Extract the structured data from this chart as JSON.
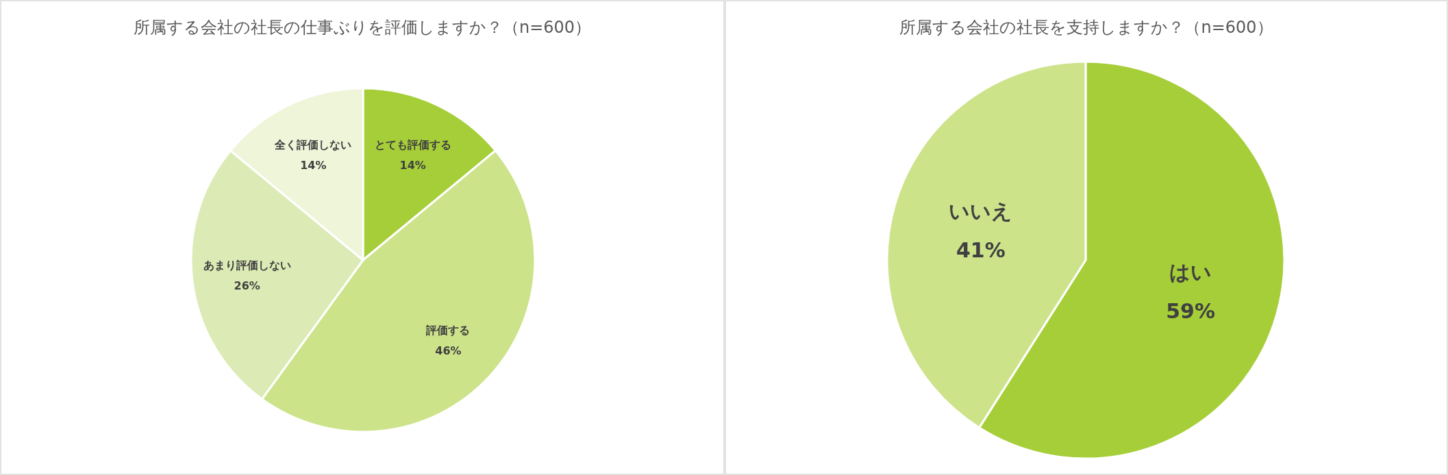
{
  "chart_data": [
    {
      "type": "pie",
      "title": "所属する会社の社長の仕事ぶりを評価しますか？（n=600）",
      "categories": [
        "とても評価する",
        "評価する",
        "あまり評価しない",
        "全く評価しない"
      ],
      "values": [
        14,
        46,
        26,
        14
      ],
      "colors": [
        "#a6ce39",
        "#cde38a",
        "#dcebb5",
        "#eef5d9"
      ],
      "value_labels": [
        "14%",
        "46%",
        "26%",
        "14%"
      ]
    },
    {
      "type": "pie",
      "title": "所属する会社の社長を支持しますか？（n=600）",
      "categories": [
        "はい",
        "いいえ"
      ],
      "values": [
        59,
        41
      ],
      "colors": [
        "#a6ce39",
        "#cde38a"
      ],
      "value_labels": [
        "59%",
        "41%"
      ]
    }
  ]
}
